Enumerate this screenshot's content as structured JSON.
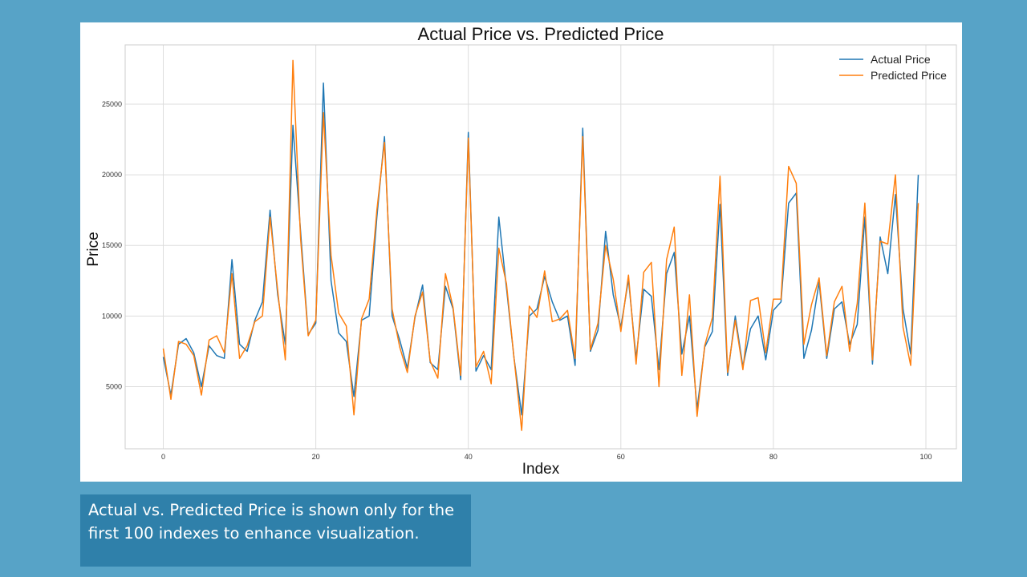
{
  "caption": "Actual vs. Predicted Price is shown only for the first 100 indexes to enhance visualization.",
  "colors": {
    "background": "#57a3c7",
    "caption_box": "#2f80aa",
    "actual": "#1f77b4",
    "predicted": "#ff7f0e"
  },
  "chart_data": {
    "type": "line",
    "title": "Actual Price vs. Predicted Price",
    "xlabel": "Index",
    "ylabel": "Price",
    "xlim": [
      -5,
      104
    ],
    "ylim": [
      600,
      29200
    ],
    "xticks": [
      0,
      20,
      40,
      60,
      80,
      100
    ],
    "yticks": [
      5000,
      10000,
      15000,
      20000,
      25000
    ],
    "grid": true,
    "legend": "top-right",
    "x": [
      0,
      1,
      2,
      3,
      4,
      5,
      6,
      7,
      8,
      9,
      10,
      11,
      12,
      13,
      14,
      15,
      16,
      17,
      18,
      19,
      20,
      21,
      22,
      23,
      24,
      25,
      26,
      27,
      28,
      29,
      30,
      31,
      32,
      33,
      34,
      35,
      36,
      37,
      38,
      39,
      40,
      41,
      42,
      43,
      44,
      45,
      46,
      47,
      48,
      49,
      50,
      51,
      52,
      53,
      54,
      55,
      56,
      57,
      58,
      59,
      60,
      61,
      62,
      63,
      64,
      65,
      66,
      67,
      68,
      69,
      70,
      71,
      72,
      73,
      74,
      75,
      76,
      77,
      78,
      79,
      80,
      81,
      82,
      83,
      84,
      85,
      86,
      87,
      88,
      89,
      90,
      91,
      92,
      93,
      94,
      95,
      96,
      97,
      98,
      99
    ],
    "series": [
      {
        "name": "Actual Price",
        "color": "#1f77b4",
        "values": [
          7100,
          4400,
          8000,
          8400,
          7400,
          5000,
          7900,
          7200,
          7000,
          14000,
          8000,
          7500,
          9700,
          11000,
          17500,
          11500,
          8000,
          23500,
          16000,
          8700,
          9500,
          26500,
          12500,
          8800,
          8200,
          4300,
          9700,
          10000,
          17000,
          22700,
          10000,
          8300,
          6300,
          9900,
          12200,
          6700,
          6200,
          12100,
          10500,
          5500,
          23000,
          6100,
          7200,
          6200,
          17000,
          12000,
          7000,
          3000,
          10000,
          10500,
          12800,
          11000,
          9700,
          10000,
          6500,
          23300,
          7500,
          9000,
          16000,
          11500,
          9200,
          12600,
          7000,
          11900,
          11400,
          6200,
          13000,
          14500,
          7300,
          10000,
          3400,
          7800,
          8900,
          17900,
          5800,
          10000,
          6400,
          9100,
          10000,
          6900,
          10400,
          11000,
          18000,
          18700,
          7000,
          9000,
          12400,
          7000,
          10500,
          11000,
          8000,
          9400,
          17000,
          6600,
          15600,
          13000,
          18600,
          10500,
          7300,
          20000
        ]
      },
      {
        "name": "Predicted Price",
        "color": "#ff7f0e",
        "values": [
          7700,
          4100,
          8200,
          8000,
          7200,
          4400,
          8300,
          8600,
          7400,
          13000,
          7000,
          7900,
          9600,
          10000,
          17000,
          11800,
          6900,
          28100,
          15500,
          8600,
          9700,
          24400,
          14300,
          10200,
          9300,
          3000,
          9800,
          11200,
          17500,
          22300,
          10500,
          7800,
          6000,
          10000,
          11700,
          6800,
          5600,
          13000,
          10600,
          5800,
          22600,
          6400,
          7500,
          5200,
          14800,
          12300,
          7000,
          1900,
          10700,
          9900,
          13200,
          9600,
          9800,
          10400,
          7000,
          22700,
          7600,
          9500,
          15000,
          12600,
          8900,
          12900,
          6600,
          13100,
          13800,
          5000,
          14000,
          16300,
          5800,
          11500,
          2900,
          7900,
          9900,
          19900,
          6000,
          9700,
          6200,
          11100,
          11300,
          7400,
          11200,
          11200,
          20600,
          19400,
          8000,
          10800,
          12700,
          7200,
          11000,
          12100,
          7500,
          10900,
          18000,
          6900,
          15300,
          15100,
          20000,
          9200,
          6500,
          18000
        ]
      }
    ]
  }
}
